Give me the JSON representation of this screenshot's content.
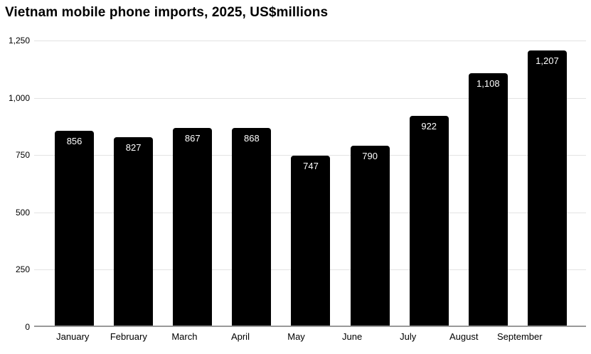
{
  "title": "Vietnam mobile phone imports, 2025, US$millions",
  "chart_data": {
    "type": "bar",
    "title": "Vietnam mobile phone imports, 2025, US$millions",
    "xlabel": "",
    "ylabel": "",
    "categories": [
      "January",
      "February",
      "March",
      "April",
      "May",
      "June",
      "July",
      "August",
      "September"
    ],
    "values": [
      856,
      827,
      867,
      868,
      747,
      790,
      922,
      1108,
      1207
    ],
    "value_labels": [
      "856",
      "827",
      "867",
      "868",
      "747",
      "790",
      "922",
      "1,108",
      "1,207"
    ],
    "y_ticks": [
      0,
      250,
      500,
      750,
      1000,
      1250
    ],
    "y_tick_labels": [
      "0",
      "250",
      "500",
      "750",
      "1,000",
      "1,250"
    ],
    "ylim": [
      0,
      1250
    ],
    "grid": true,
    "legend_position": "none",
    "colors": {
      "bar": "#000000",
      "bar_label": "#ffffff",
      "gridline": "#e3e3e3",
      "axis_line": "#999999",
      "text": "#000000",
      "background": "#ffffff"
    }
  }
}
